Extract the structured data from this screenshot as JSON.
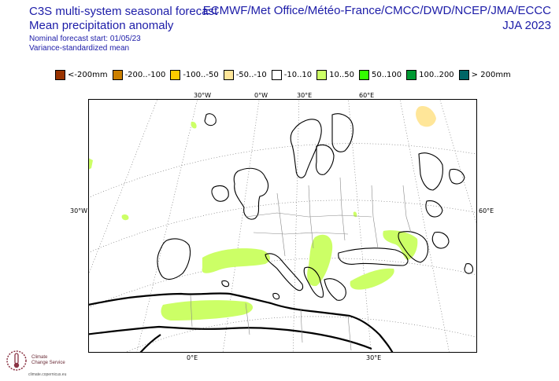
{
  "header": {
    "title_line1": "C3S multi-system seasonal forecast",
    "title_line2": "Mean precipitation anomaly",
    "start_line": "Nominal forecast start: 01/05/23",
    "method_line": "Variance-standardized mean",
    "centres": "ECMWF/Met Office/Météo-France/CMCC/DWD/NCEP/JMA/ECCC",
    "season": "JJA 2023"
  },
  "legend": [
    {
      "label": "<-200mm",
      "color": "#993300"
    },
    {
      "label": "-200..-100",
      "color": "#cc8000"
    },
    {
      "label": "-100..-50",
      "color": "#ffcc00"
    },
    {
      "label": "-50..-10",
      "color": "#ffe699"
    },
    {
      "label": "-10..10",
      "color": "#ffffff"
    },
    {
      "label": "10..50",
      "color": "#ccff66"
    },
    {
      "label": "50..100",
      "color": "#33ff00"
    },
    {
      "label": "100..200",
      "color": "#009933"
    },
    {
      "label": "> 200mm",
      "color": "#006666"
    }
  ],
  "axes": {
    "top": [
      "30°W",
      "0°W",
      "30°E",
      "60°E"
    ],
    "left": "30°W",
    "right": "60°E",
    "bottom": [
      "0°E",
      "30°E"
    ]
  },
  "logo": {
    "line1": "Climate",
    "line2": "Change Service",
    "url": "climate.copernicus.eu"
  }
}
